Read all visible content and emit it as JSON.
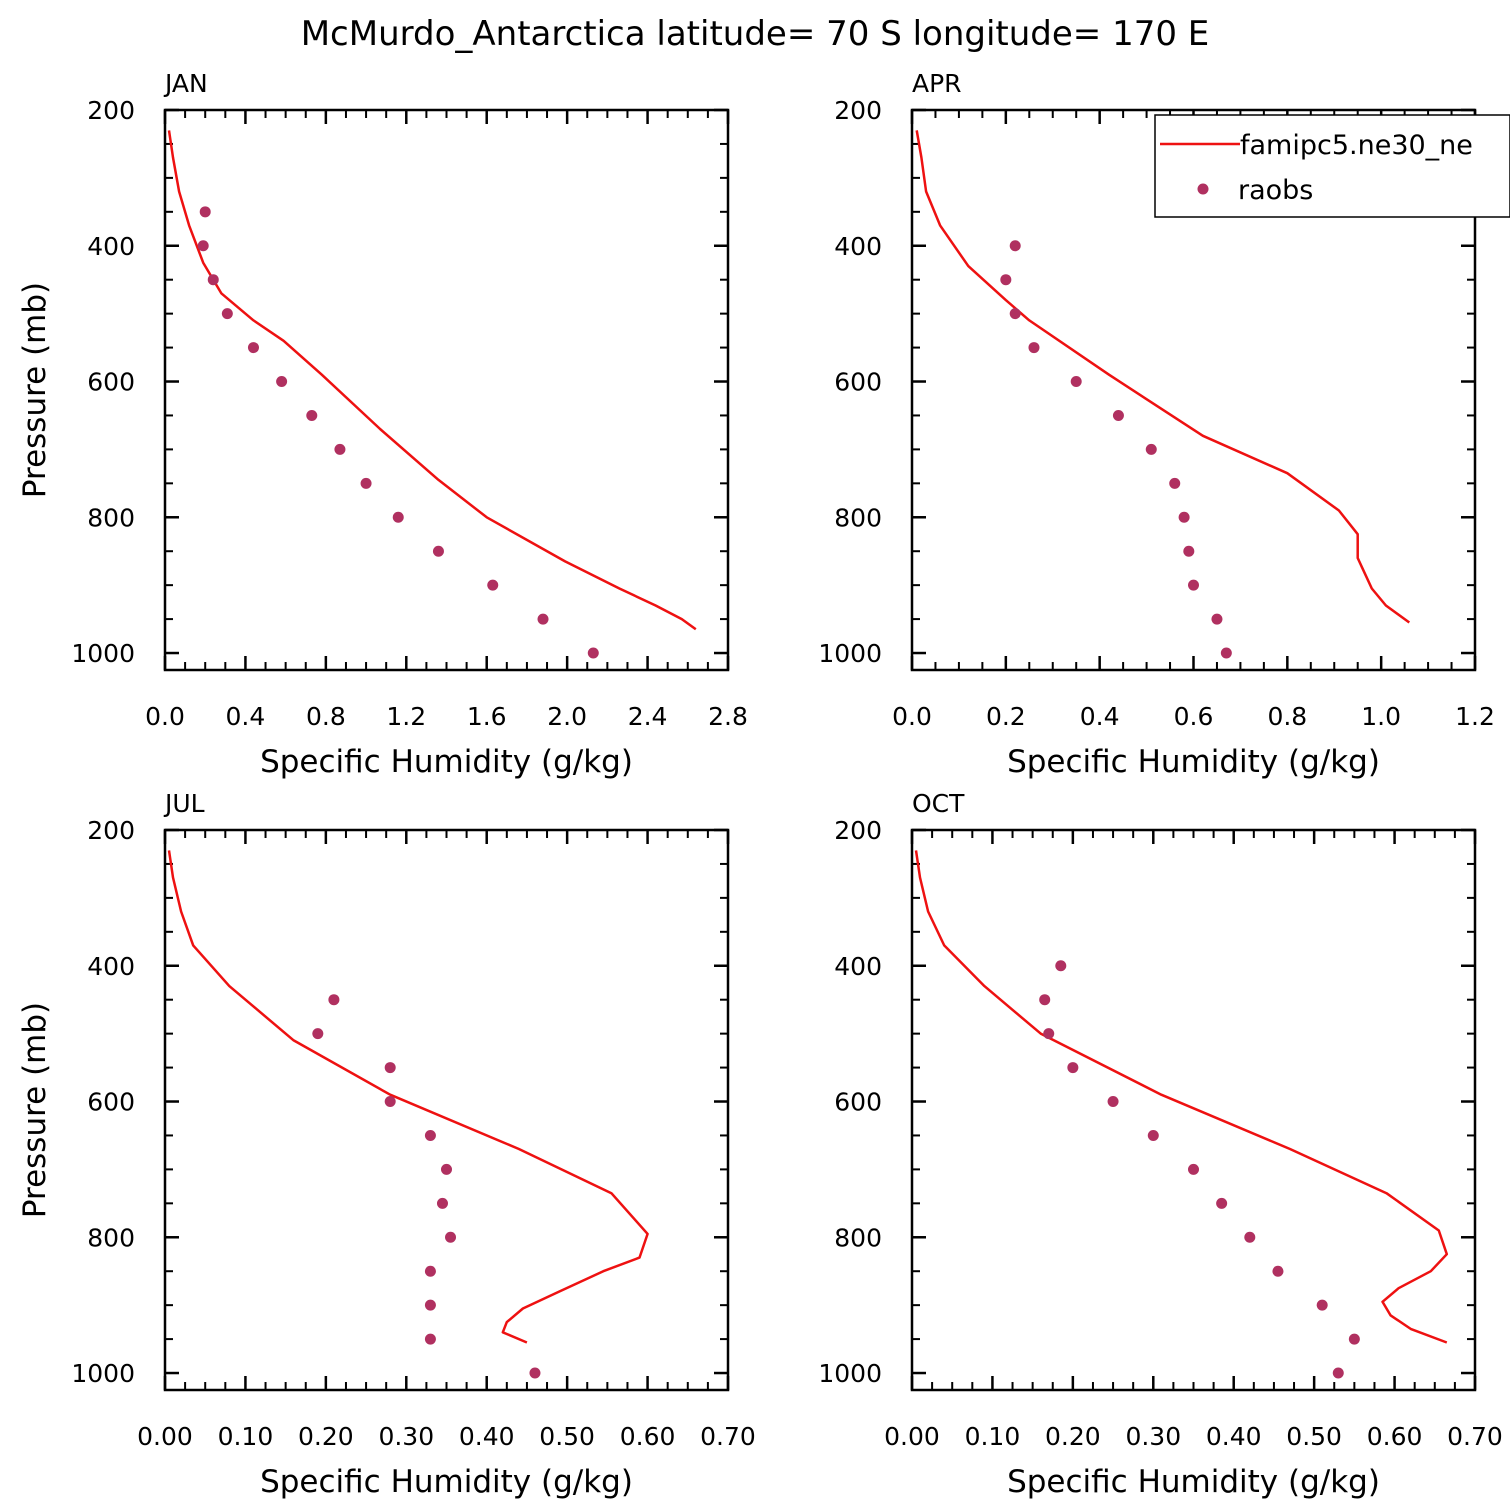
{
  "title": "McMurdo_Antarctica  latitude= 70 S longitude= 170 E",
  "legend": {
    "position": "top-right of APR panel",
    "entries": [
      {
        "label": "famipc5.ne30_ne",
        "kind": "line",
        "color": "#ee1111"
      },
      {
        "label": "raobs",
        "kind": "marker",
        "color": "#b03060"
      }
    ]
  },
  "colors": {
    "model_line": "#ee1111",
    "obs_marker": "#b03060"
  },
  "chart_data": [
    {
      "type": "line",
      "panel": "JAN",
      "xlabel": "Specific Humidity (g/kg)",
      "ylabel": "Pressure (mb)",
      "xlim": [
        0,
        2.8
      ],
      "ylim": [
        200,
        1025
      ],
      "y_reversed": true,
      "xticks": [
        "0.0",
        "0.4",
        "0.8",
        "1.2",
        "1.6",
        "2.0",
        "2.4",
        "2.8"
      ],
      "xtick_values": [
        0,
        0.4,
        0.8,
        1.2,
        1.6,
        2.0,
        2.4,
        2.8
      ],
      "yticks": [
        "200",
        "400",
        "600",
        "800",
        "1000"
      ],
      "ytick_values": [
        200,
        400,
        600,
        800,
        1000
      ],
      "series": [
        {
          "name": "famipc5.ne30_ne",
          "kind": "line",
          "x": [
            0.02,
            0.04,
            0.07,
            0.12,
            0.19,
            0.28,
            0.44,
            0.59,
            0.78,
            1.07,
            1.36,
            1.6,
            1.99,
            2.26,
            2.44,
            2.57,
            2.64
          ],
          "y": [
            230,
            270,
            320,
            370,
            425,
            470,
            510,
            540,
            590,
            670,
            745,
            800,
            865,
            905,
            930,
            950,
            965
          ]
        },
        {
          "name": "raobs",
          "kind": "marker",
          "x": [
            0.2,
            0.19,
            0.24,
            0.31,
            0.44,
            0.58,
            0.73,
            0.87,
            1.0,
            1.16,
            1.36,
            1.63,
            1.88,
            2.13
          ],
          "y": [
            350,
            400,
            450,
            500,
            550,
            600,
            650,
            700,
            750,
            800,
            850,
            900,
            950,
            1000
          ]
        }
      ]
    },
    {
      "type": "line",
      "panel": "APR",
      "xlabel": "Specific Humidity (g/kg)",
      "ylabel": "",
      "xlim": [
        0,
        1.2
      ],
      "ylim": [
        200,
        1025
      ],
      "y_reversed": true,
      "xticks": [
        "0.0",
        "0.2",
        "0.4",
        "0.6",
        "0.8",
        "1.0",
        "1.2"
      ],
      "xtick_values": [
        0,
        0.2,
        0.4,
        0.6,
        0.8,
        1.0,
        1.2
      ],
      "yticks": [
        "200",
        "400",
        "600",
        "800",
        "1000"
      ],
      "ytick_values": [
        200,
        400,
        600,
        800,
        1000
      ],
      "series": [
        {
          "name": "famipc5.ne30_ne",
          "kind": "line",
          "x": [
            0.01,
            0.02,
            0.03,
            0.06,
            0.12,
            0.2,
            0.25,
            0.42,
            0.62,
            0.8,
            0.91,
            0.95,
            0.95,
            0.96,
            0.98,
            1.01,
            1.06
          ],
          "y": [
            230,
            270,
            320,
            370,
            430,
            480,
            510,
            590,
            680,
            735,
            790,
            825,
            860,
            875,
            905,
            930,
            955
          ]
        },
        {
          "name": "raobs",
          "kind": "marker",
          "x": [
            0.22,
            0.2,
            0.22,
            0.26,
            0.35,
            0.44,
            0.51,
            0.56,
            0.58,
            0.59,
            0.6,
            0.65,
            0.67
          ],
          "y": [
            400,
            450,
            500,
            550,
            600,
            650,
            700,
            750,
            800,
            850,
            900,
            950,
            1000
          ]
        }
      ]
    },
    {
      "type": "line",
      "panel": "JUL",
      "xlabel": "Specific Humidity (g/kg)",
      "ylabel": "Pressure (mb)",
      "xlim": [
        0,
        0.7
      ],
      "ylim": [
        200,
        1025
      ],
      "y_reversed": true,
      "xticks": [
        "0.00",
        "0.10",
        "0.20",
        "0.30",
        "0.40",
        "0.50",
        "0.60",
        "0.70"
      ],
      "xtick_values": [
        0,
        0.1,
        0.2,
        0.3,
        0.4,
        0.5,
        0.6,
        0.7
      ],
      "yticks": [
        "200",
        "400",
        "600",
        "800",
        "1000"
      ],
      "ytick_values": [
        200,
        400,
        600,
        800,
        1000
      ],
      "series": [
        {
          "name": "famipc5.ne30_ne",
          "kind": "line",
          "x": [
            0.005,
            0.01,
            0.02,
            0.035,
            0.08,
            0.16,
            0.28,
            0.44,
            0.555,
            0.6,
            0.59,
            0.545,
            0.49,
            0.445,
            0.425,
            0.42,
            0.45
          ],
          "y": [
            230,
            270,
            320,
            370,
            430,
            510,
            590,
            670,
            735,
            795,
            830,
            850,
            880,
            905,
            925,
            940,
            955
          ]
        },
        {
          "name": "raobs",
          "kind": "marker",
          "x": [
            0.21,
            0.19,
            0.28,
            0.28,
            0.33,
            0.35,
            0.345,
            0.355,
            0.33,
            0.33,
            0.33,
            0.46
          ],
          "y": [
            450,
            500,
            550,
            600,
            650,
            700,
            750,
            800,
            850,
            900,
            950,
            1000
          ]
        }
      ]
    },
    {
      "type": "line",
      "panel": "OCT",
      "xlabel": "Specific Humidity (g/kg)",
      "ylabel": "",
      "xlim": [
        0,
        0.7
      ],
      "ylim": [
        200,
        1025
      ],
      "y_reversed": true,
      "xticks": [
        "0.00",
        "0.10",
        "0.20",
        "0.30",
        "0.40",
        "0.50",
        "0.60",
        "0.70"
      ],
      "xtick_values": [
        0,
        0.1,
        0.2,
        0.3,
        0.4,
        0.5,
        0.6,
        0.7
      ],
      "yticks": [
        "200",
        "400",
        "600",
        "800",
        "1000"
      ],
      "ytick_values": [
        200,
        400,
        600,
        800,
        1000
      ],
      "series": [
        {
          "name": "famipc5.ne30_ne",
          "kind": "line",
          "x": [
            0.005,
            0.01,
            0.02,
            0.04,
            0.09,
            0.16,
            0.31,
            0.47,
            0.59,
            0.655,
            0.665,
            0.645,
            0.605,
            0.585,
            0.595,
            0.62,
            0.665
          ],
          "y": [
            230,
            270,
            320,
            370,
            430,
            500,
            590,
            670,
            735,
            790,
            825,
            850,
            875,
            895,
            915,
            935,
            955
          ]
        },
        {
          "name": "raobs",
          "kind": "marker",
          "x": [
            0.185,
            0.165,
            0.17,
            0.2,
            0.25,
            0.3,
            0.35,
            0.385,
            0.42,
            0.455,
            0.51,
            0.55,
            0.53
          ],
          "y": [
            400,
            450,
            500,
            550,
            600,
            650,
            700,
            750,
            800,
            850,
            900,
            950,
            1000
          ]
        }
      ]
    }
  ]
}
